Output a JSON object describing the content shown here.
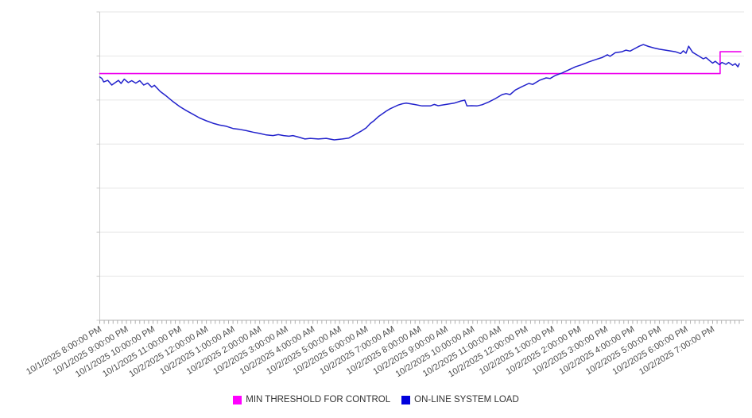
{
  "chart_data": {
    "type": "line",
    "title": "",
    "xlabel": "",
    "ylabel": "",
    "grid": "horizontal",
    "legend_position": "bottom-center",
    "x_axis": {
      "unit": "hours since first labeled tick (10/1/2025 8:00:00 PM)",
      "xlim": [
        0,
        24.1
      ],
      "major_tick_every_hours": 1,
      "minor_tick_every_hours": 0.1667,
      "tick_labels": [
        "10/1/2025 8:00:00 PM",
        "10/1/2025 9:00:00 PM",
        "10/1/2025 10:00:00 PM",
        "10/1/2025 11:00:00 PM",
        "10/2/2025 12:00:00 AM",
        "10/2/2025 1:00:00 AM",
        "10/2/2025 2:00:00 AM",
        "10/2/2025 3:00:00 AM",
        "10/2/2025 4:00:00 AM",
        "10/2/2025 5:00:00 AM",
        "10/2/2025 6:00:00 AM",
        "10/2/2025 7:00:00 AM",
        "10/2/2025 8:00:00 AM",
        "10/2/2025 9:00:00 AM",
        "10/2/2025 10:00:00 AM",
        "10/2/2025 11:00:00 AM",
        "10/2/2025 12:00:00 PM",
        "10/2/2025 1:00:00 PM",
        "10/2/2025 2:00:00 PM",
        "10/2/2025 3:00:00 PM",
        "10/2/2025 4:00:00 PM",
        "10/2/2025 5:00:00 PM",
        "10/2/2025 6:00:00 PM",
        "10/2/2025 7:00:00 PM"
      ]
    },
    "y_axis": {
      "labels_shown": false,
      "ylim": [
        0,
        100
      ],
      "note": "no numeric y tick labels visible; values normalized 0-100 of plot height",
      "gridline_values": [
        100,
        85.71,
        71.43,
        57.14,
        42.86,
        28.57,
        14.29,
        0
      ]
    },
    "series": [
      {
        "name": "MIN THRESHOLD FOR CONTROL",
        "color": "#ee00ee",
        "points": [
          [
            0,
            80.0
          ],
          [
            23.28,
            80.0
          ],
          [
            23.28,
            87.1
          ],
          [
            24.06,
            87.1
          ]
        ]
      },
      {
        "name": "ON-LINE SYSTEM LOAD",
        "color": "#2222cc",
        "points": [
          [
            0.0,
            78.9
          ],
          [
            0.08,
            78.4
          ],
          [
            0.15,
            77.3
          ],
          [
            0.3,
            77.8
          ],
          [
            0.45,
            76.3
          ],
          [
            0.6,
            77.2
          ],
          [
            0.7,
            77.8
          ],
          [
            0.8,
            76.8
          ],
          [
            0.92,
            78.2
          ],
          [
            1.07,
            77.1
          ],
          [
            1.2,
            77.7
          ],
          [
            1.35,
            76.9
          ],
          [
            1.5,
            77.7
          ],
          [
            1.65,
            76.3
          ],
          [
            1.8,
            76.9
          ],
          [
            1.95,
            75.6
          ],
          [
            2.05,
            76.2
          ],
          [
            2.27,
            74.2
          ],
          [
            2.5,
            72.7
          ],
          [
            2.75,
            70.9
          ],
          [
            3.0,
            69.3
          ],
          [
            3.25,
            68.0
          ],
          [
            3.5,
            66.8
          ],
          [
            3.75,
            65.6
          ],
          [
            4.0,
            64.7
          ],
          [
            4.25,
            63.9
          ],
          [
            4.5,
            63.3
          ],
          [
            4.75,
            62.9
          ],
          [
            5.0,
            62.2
          ],
          [
            5.25,
            61.9
          ],
          [
            5.5,
            61.5
          ],
          [
            5.75,
            61.0
          ],
          [
            6.0,
            60.6
          ],
          [
            6.25,
            60.1
          ],
          [
            6.5,
            59.9
          ],
          [
            6.7,
            60.2
          ],
          [
            6.9,
            59.9
          ],
          [
            7.1,
            59.7
          ],
          [
            7.25,
            59.9
          ],
          [
            7.5,
            59.3
          ],
          [
            7.7,
            58.8
          ],
          [
            7.9,
            59.0
          ],
          [
            8.2,
            58.8
          ],
          [
            8.5,
            59.0
          ],
          [
            8.8,
            58.5
          ],
          [
            9.1,
            58.8
          ],
          [
            9.35,
            59.1
          ],
          [
            9.6,
            60.3
          ],
          [
            9.8,
            61.3
          ],
          [
            10.0,
            62.4
          ],
          [
            10.15,
            63.8
          ],
          [
            10.3,
            64.8
          ],
          [
            10.45,
            66.0
          ],
          [
            10.6,
            66.9
          ],
          [
            10.75,
            67.8
          ],
          [
            10.9,
            68.6
          ],
          [
            11.05,
            69.2
          ],
          [
            11.2,
            69.8
          ],
          [
            11.35,
            70.2
          ],
          [
            11.5,
            70.4
          ],
          [
            11.8,
            70.0
          ],
          [
            12.1,
            69.5
          ],
          [
            12.4,
            69.5
          ],
          [
            12.55,
            70.0
          ],
          [
            12.7,
            69.6
          ],
          [
            13.0,
            70.0
          ],
          [
            13.3,
            70.4
          ],
          [
            13.55,
            71.1
          ],
          [
            13.7,
            71.4
          ],
          [
            13.78,
            69.5
          ],
          [
            13.95,
            69.6
          ],
          [
            14.15,
            69.5
          ],
          [
            14.35,
            69.9
          ],
          [
            14.6,
            70.8
          ],
          [
            14.85,
            71.9
          ],
          [
            15.1,
            73.2
          ],
          [
            15.25,
            73.5
          ],
          [
            15.4,
            73.2
          ],
          [
            15.6,
            74.7
          ],
          [
            15.85,
            75.8
          ],
          [
            16.1,
            76.8
          ],
          [
            16.25,
            76.5
          ],
          [
            16.5,
            77.8
          ],
          [
            16.75,
            78.6
          ],
          [
            16.9,
            78.4
          ],
          [
            17.1,
            79.4
          ],
          [
            17.35,
            80.2
          ],
          [
            17.6,
            81.2
          ],
          [
            17.85,
            82.2
          ],
          [
            18.1,
            82.9
          ],
          [
            18.35,
            83.8
          ],
          [
            18.6,
            84.5
          ],
          [
            18.85,
            85.2
          ],
          [
            19.05,
            86.1
          ],
          [
            19.15,
            85.6
          ],
          [
            19.35,
            86.8
          ],
          [
            19.6,
            87.1
          ],
          [
            19.75,
            87.6
          ],
          [
            19.9,
            87.3
          ],
          [
            20.05,
            88.0
          ],
          [
            20.25,
            88.9
          ],
          [
            20.4,
            89.4
          ],
          [
            20.6,
            88.8
          ],
          [
            20.8,
            88.3
          ],
          [
            21.0,
            87.9
          ],
          [
            21.3,
            87.5
          ],
          [
            21.6,
            87.1
          ],
          [
            21.8,
            86.5
          ],
          [
            21.9,
            87.4
          ],
          [
            22.0,
            86.6
          ],
          [
            22.1,
            88.9
          ],
          [
            22.25,
            86.9
          ],
          [
            22.4,
            86.1
          ],
          [
            22.5,
            85.6
          ],
          [
            22.65,
            84.8
          ],
          [
            22.75,
            85.2
          ],
          [
            22.9,
            84.1
          ],
          [
            23.0,
            83.4
          ],
          [
            23.1,
            84.0
          ],
          [
            23.25,
            82.9
          ],
          [
            23.35,
            83.6
          ],
          [
            23.5,
            83.0
          ],
          [
            23.6,
            83.6
          ],
          [
            23.75,
            82.7
          ],
          [
            23.85,
            83.2
          ],
          [
            23.95,
            82.2
          ],
          [
            24.0,
            83.2
          ]
        ]
      }
    ]
  },
  "legend": {
    "swatch_colors": [
      "#ff00ff",
      "#0000dd"
    ]
  },
  "colors": {
    "background": "#ffffff",
    "gridline": "#e6e6e6",
    "y_axis_line": "#cccccc",
    "x_axis_line": "#b0b0b0",
    "tick": "#b0b0b0",
    "axis_label_text": "#4a4a4a",
    "legend_text": "#333333"
  }
}
